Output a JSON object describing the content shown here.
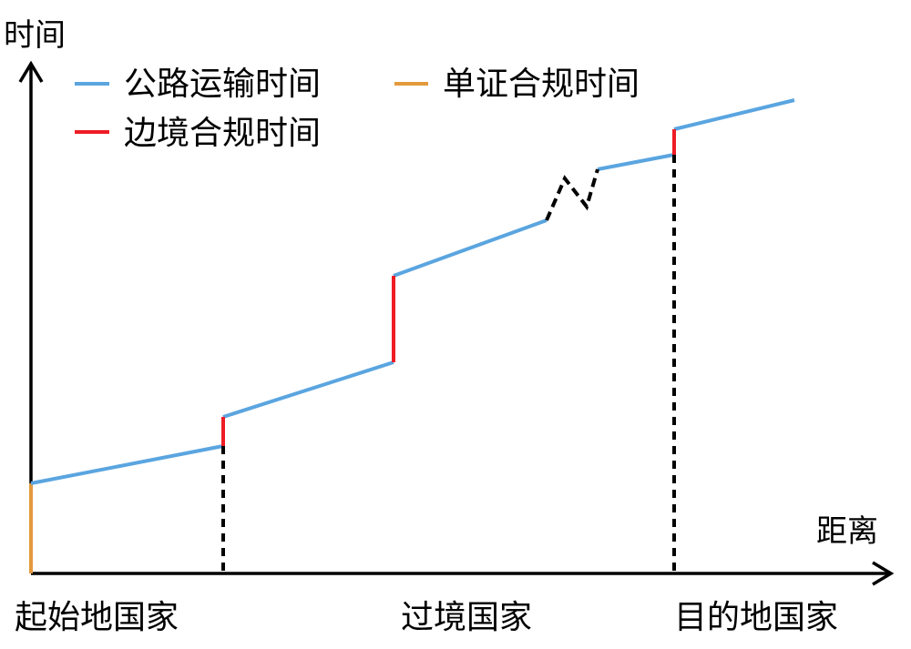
{
  "axes": {
    "y_label": "时间",
    "x_label": "距离"
  },
  "legend": {
    "items": [
      {
        "key": "road",
        "label": "公路运输时间",
        "color": "#5aa5e0"
      },
      {
        "key": "single",
        "label": "单证合规时间",
        "color": "#e39a3c"
      },
      {
        "key": "border",
        "label": "边境合规时间",
        "color": "#ee1c25"
      }
    ]
  },
  "categories": [
    "起始地国家",
    "过境国家",
    "目的地国家"
  ]
}
